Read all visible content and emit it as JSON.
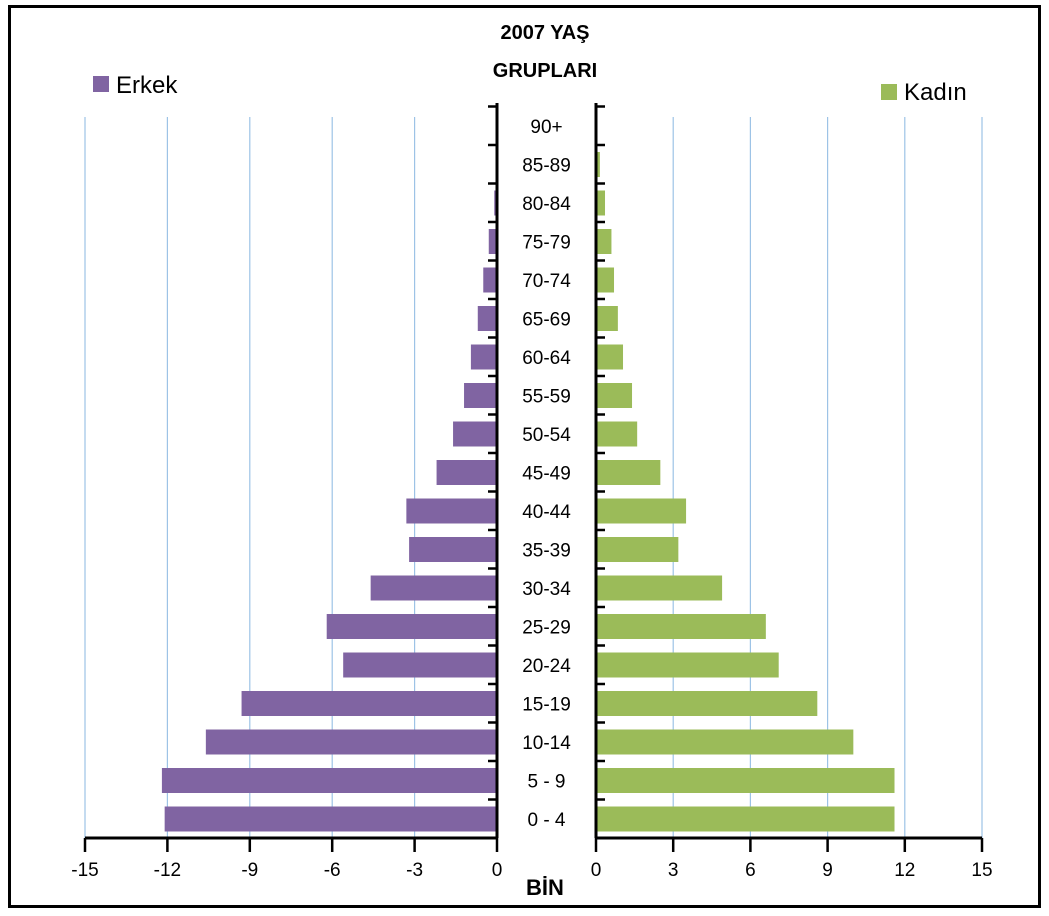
{
  "chart_data": {
    "type": "bar",
    "title_lines": [
      "2007 YAŞ",
      "GRUPLARI"
    ],
    "unit_label": "BİN",
    "categories": [
      "0 - 4",
      "5 - 9",
      "10-14",
      "15-19",
      "20-24",
      "25-29",
      "30-34",
      "35-39",
      "40-44",
      "45-49",
      "50-54",
      "55-59",
      "60-64",
      "65-69",
      "70-74",
      "75-79",
      "80-84",
      "85-89",
      "90+"
    ],
    "series": [
      {
        "name": "Erkek",
        "color": "#8064a2",
        "values": [
          -12.1,
          -12.2,
          -10.6,
          -9.3,
          -5.6,
          -6.2,
          -4.6,
          -3.2,
          -3.3,
          -2.2,
          -1.6,
          -1.2,
          -0.95,
          -0.7,
          -0.5,
          -0.3,
          -0.1,
          0,
          0
        ]
      },
      {
        "name": "Kadın",
        "color": "#9bbb59",
        "values": [
          11.6,
          11.6,
          10.0,
          8.6,
          7.1,
          6.6,
          4.9,
          3.2,
          3.5,
          2.5,
          1.6,
          1.4,
          1.05,
          0.85,
          0.7,
          0.6,
          0.35,
          0.15,
          0.05
        ]
      }
    ],
    "left_axis": {
      "range": [
        -15,
        0
      ],
      "ticks": [
        -15,
        -12,
        -9,
        -6,
        -3,
        0
      ],
      "tick_labels": [
        "-15",
        "-12",
        "-9",
        "-6",
        "-3",
        "0"
      ]
    },
    "right_axis": {
      "range": [
        0,
        15
      ],
      "ticks": [
        0,
        3,
        6,
        9,
        12,
        15
      ],
      "tick_labels": [
        "0",
        "3",
        "6",
        "9",
        "12",
        "15"
      ]
    },
    "grid": true,
    "gridline_color": "#9dc3e6",
    "legend_placement": "top-left (Erkek), top-right (Kadın)"
  }
}
